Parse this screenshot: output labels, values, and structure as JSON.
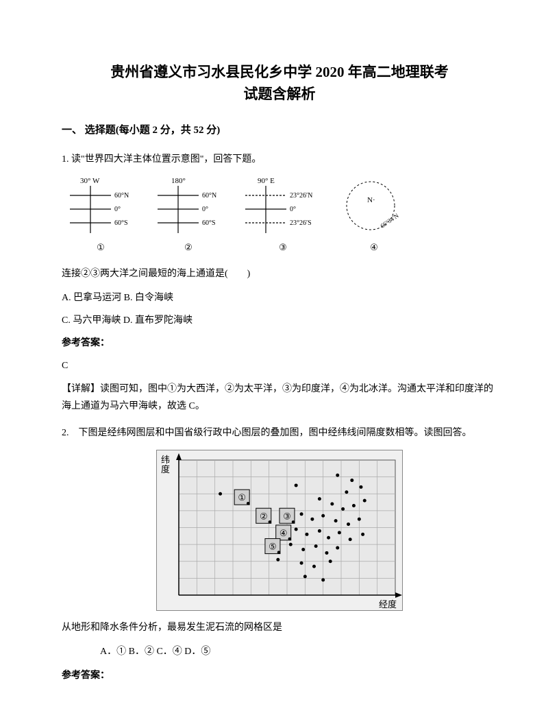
{
  "title_line1": "贵州省遵义市习水县民化乡中学 2020 年高二地理联考",
  "title_line2": "试题含解析",
  "section_header": "一、 选择题(每小题 2 分，共 52 分)",
  "q1": {
    "prompt": "1. 读\"世界四大洋主体位置示意图\"，回答下题。",
    "diagrams": {
      "d1": {
        "top": "30° W",
        "labels": [
          "60°N",
          "0°",
          "60°S"
        ],
        "num": "①"
      },
      "d2": {
        "top": "180°",
        "labels": [
          "60°N",
          "0°",
          "60°S"
        ],
        "num": "②"
      },
      "d3": {
        "top": "90° E",
        "labels": [
          "23°26′N",
          "0°",
          "23°26′S"
        ],
        "num": "③"
      },
      "d4": {
        "center": "N·",
        "deg": "66°34′N",
        "num": "④"
      }
    },
    "sub_question": "连接②③两大洋之间最短的海上通道是(　　)",
    "option_ab": "A. 巴拿马运河 B. 白令海峡",
    "option_cd": "C. 马六甲海峡 D. 直布罗陀海峡",
    "answer_label": "参考答案：",
    "answer": "C",
    "explanation": "【详解】读图可知，图中①为大西洋，②为太平洋，③为印度洋，④为北冰洋。沟通太平洋和印度洋的海上通道为马六甲海峡，故选 C。"
  },
  "q2": {
    "prompt": "2.　下图是经纬网图层和中国省级行政中心图层的叠加图，图中经纬线间隔度数相等。读图回答。",
    "map": {
      "y_label": "纬度",
      "x_label": "经度",
      "grid": {
        "cols": 12,
        "rows": 8,
        "stroke": "#aaaaaa",
        "bg": "#e8e8e8"
      },
      "boxes": [
        {
          "n": "①",
          "gx": 3.5,
          "gy": 2.2
        },
        {
          "n": "②",
          "gx": 4.7,
          "gy": 3.3
        },
        {
          "n": "③",
          "gx": 6.0,
          "gy": 3.3
        },
        {
          "n": "④",
          "gx": 5.8,
          "gy": 4.3
        },
        {
          "n": "⑤",
          "gx": 5.2,
          "gy": 5.1
        }
      ],
      "dots": [
        [
          2.3,
          2.0
        ],
        [
          6.5,
          1.5
        ],
        [
          8.8,
          0.9
        ],
        [
          9.6,
          1.2
        ],
        [
          10.1,
          1.6
        ],
        [
          9.3,
          1.9
        ],
        [
          7.8,
          2.3
        ],
        [
          8.5,
          2.6
        ],
        [
          9.1,
          2.9
        ],
        [
          9.7,
          2.7
        ],
        [
          10.3,
          2.4
        ],
        [
          6.8,
          3.2
        ],
        [
          7.4,
          3.5
        ],
        [
          8.0,
          3.3
        ],
        [
          8.7,
          3.6
        ],
        [
          9.4,
          3.8
        ],
        [
          10.0,
          3.5
        ],
        [
          6.5,
          4.1
        ],
        [
          7.1,
          4.4
        ],
        [
          7.8,
          4.2
        ],
        [
          8.3,
          4.6
        ],
        [
          8.9,
          4.3
        ],
        [
          9.5,
          4.7
        ],
        [
          10.2,
          4.4
        ],
        [
          6.2,
          5.0
        ],
        [
          6.9,
          5.3
        ],
        [
          7.6,
          5.1
        ],
        [
          8.2,
          5.5
        ],
        [
          8.8,
          5.2
        ],
        [
          5.5,
          5.9
        ],
        [
          6.8,
          6.1
        ],
        [
          7.5,
          6.3
        ],
        [
          8.4,
          6.0
        ],
        [
          7.0,
          6.9
        ],
        [
          8.0,
          7.1
        ]
      ]
    },
    "sub_question": "从地形和降水条件分析，最易发生泥石流的网格区是",
    "options": "A．① B．② C．④ D．⑤",
    "answer_label": "参考答案："
  }
}
